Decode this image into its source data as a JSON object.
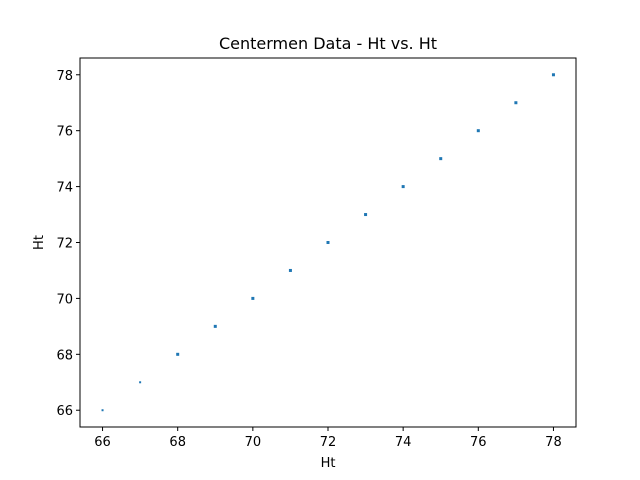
{
  "chart_data": {
    "type": "scatter",
    "title": "Centermen Data - Ht vs. Ht",
    "xlabel": "Ht",
    "ylabel": "Ht",
    "xlim": [
      65.4,
      78.6
    ],
    "ylim": [
      65.4,
      78.6
    ],
    "xticks": [
      66,
      68,
      70,
      72,
      74,
      76,
      78
    ],
    "yticks": [
      66,
      68,
      70,
      72,
      74,
      76,
      78
    ],
    "grid": false,
    "series": [
      {
        "color": "#1f77b4",
        "points": [
          {
            "x": 66,
            "y": 66,
            "size": 2
          },
          {
            "x": 67,
            "y": 67,
            "size": 2
          },
          {
            "x": 68,
            "y": 68,
            "size": 3
          },
          {
            "x": 69,
            "y": 69,
            "size": 3
          },
          {
            "x": 70,
            "y": 70,
            "size": 3
          },
          {
            "x": 71,
            "y": 71,
            "size": 3
          },
          {
            "x": 72,
            "y": 72,
            "size": 3
          },
          {
            "x": 73,
            "y": 73,
            "size": 3
          },
          {
            "x": 74,
            "y": 74,
            "size": 3
          },
          {
            "x": 75,
            "y": 75,
            "size": 3
          },
          {
            "x": 76,
            "y": 76,
            "size": 3
          },
          {
            "x": 77,
            "y": 77,
            "size": 3
          },
          {
            "x": 78,
            "y": 78,
            "size": 3
          }
        ]
      }
    ]
  }
}
